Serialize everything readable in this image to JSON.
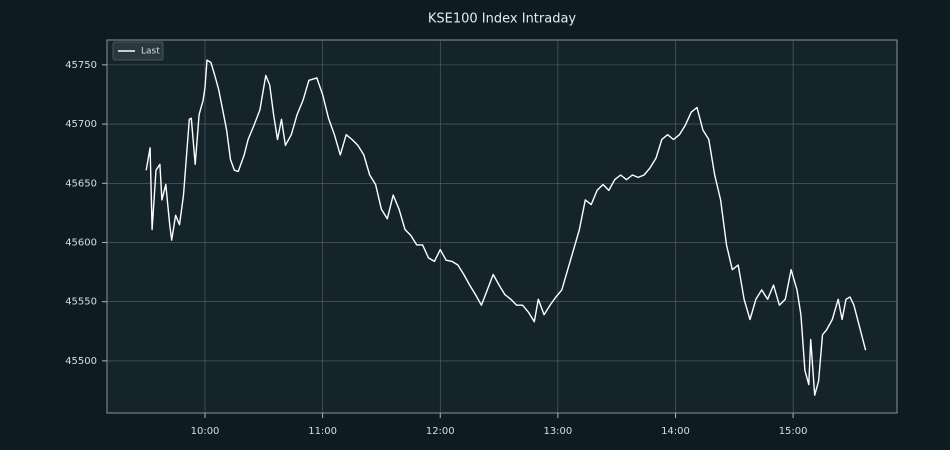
{
  "chart_data": {
    "type": "line",
    "title": "KSE100 Index Intraday",
    "x": [
      "09:30",
      "09:32",
      "09:33",
      "09:35",
      "09:37",
      "09:38",
      "09:40",
      "09:42",
      "09:43",
      "09:45",
      "09:47",
      "09:49",
      "09:50",
      "09:52",
      "09:53",
      "09:55",
      "09:57",
      "09:59",
      "10:00",
      "10:01",
      "10:03",
      "10:05",
      "10:07",
      "10:09",
      "10:11",
      "10:13",
      "10:15",
      "10:17",
      "10:20",
      "10:22",
      "10:25",
      "10:28",
      "10:31",
      "10:33",
      "10:35",
      "10:37",
      "10:39",
      "10:41",
      "10:44",
      "10:47",
      "10:50",
      "10:53",
      "10:57",
      "11:00",
      "11:03",
      "11:06",
      "11:09",
      "11:12",
      "11:15",
      "11:18",
      "11:21",
      "11:24",
      "11:27",
      "11:30",
      "11:33",
      "11:36",
      "11:39",
      "11:42",
      "11:45",
      "11:48",
      "11:51",
      "11:54",
      "11:57",
      "12:00",
      "12:03",
      "12:06",
      "12:09",
      "12:12",
      "12:15",
      "12:18",
      "12:21",
      "12:24",
      "12:27",
      "12:30",
      "12:33",
      "12:36",
      "12:39",
      "12:42",
      "12:45",
      "12:48",
      "12:50",
      "12:53",
      "12:56",
      "12:59",
      "13:02",
      "13:05",
      "13:08",
      "13:11",
      "13:14",
      "13:17",
      "13:20",
      "13:23",
      "13:26",
      "13:29",
      "13:32",
      "13:35",
      "13:38",
      "13:41",
      "13:44",
      "13:47",
      "13:50",
      "13:53",
      "13:56",
      "13:59",
      "14:02",
      "14:05",
      "14:08",
      "14:11",
      "14:14",
      "14:17",
      "14:20",
      "14:23",
      "14:26",
      "14:29",
      "14:32",
      "14:35",
      "14:38",
      "14:41",
      "14:44",
      "14:47",
      "14:50",
      "14:53",
      "14:56",
      "14:59",
      "15:02",
      "15:04",
      "15:06",
      "15:08",
      "15:09",
      "15:11",
      "15:13",
      "15:15",
      "15:17",
      "15:20",
      "15:23",
      "15:25",
      "15:27",
      "15:29",
      "15:31",
      "15:37"
    ],
    "series": [
      {
        "name": "Last",
        "color": "#ffffff",
        "values": [
          45661,
          45680,
          45611,
          45661,
          45666,
          45636,
          45649,
          45615,
          45602,
          45623,
          45615,
          45640,
          45661,
          45704,
          45705,
          45666,
          45708,
          45720,
          45731,
          45754,
          45752,
          45741,
          45729,
          45712,
          45695,
          45670,
          45661,
          45660,
          45674,
          45687,
          45699,
          45712,
          45741,
          45733,
          45708,
          45687,
          45704,
          45682,
          45691,
          45708,
          45720,
          45737,
          45739,
          45725,
          45705,
          45691,
          45674,
          45691,
          45687,
          45682,
          45674,
          45657,
          45649,
          45628,
          45620,
          45640,
          45628,
          45611,
          45606,
          45598,
          45598,
          45587,
          45584,
          45594,
          45585,
          45584,
          45581,
          45573,
          45564,
          45556,
          45547,
          45560,
          45573,
          45564,
          45556,
          45552,
          45547,
          45547,
          45541,
          45533,
          45552,
          45539,
          45547,
          45554,
          45560,
          45577,
          45594,
          45611,
          45636,
          45632,
          45644,
          45649,
          45644,
          45653,
          45657,
          45653,
          45657,
          45655,
          45657,
          45663,
          45671,
          45687,
          45691,
          45687,
          45691,
          45699,
          45710,
          45714,
          45695,
          45687,
          45657,
          45636,
          45598,
          45577,
          45581,
          45552,
          45535,
          45552,
          45560,
          45552,
          45564,
          45547,
          45552,
          45577,
          45560,
          45539,
          45492,
          45480,
          45518,
          45471,
          45483,
          45522,
          45526,
          45535,
          45552,
          45535,
          45552,
          45554,
          45547,
          45509
        ]
      }
    ],
    "xlim": [
      "09:10",
      "15:53"
    ],
    "xticks": [
      "10:00",
      "11:00",
      "12:00",
      "13:00",
      "14:00",
      "15:00"
    ],
    "ylim": [
      45456,
      45771
    ],
    "yticks": [
      45500,
      45550,
      45600,
      45650,
      45700,
      45750
    ],
    "grid": true,
    "legend": "upper left"
  }
}
